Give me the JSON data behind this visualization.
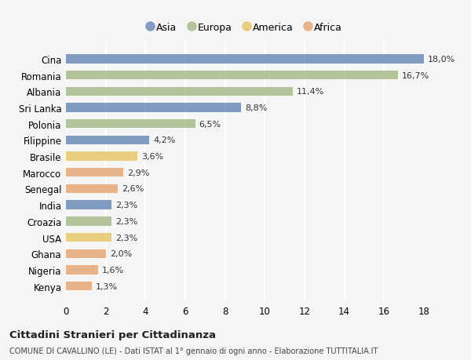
{
  "countries": [
    "Cina",
    "Romania",
    "Albania",
    "Sri Lanka",
    "Polonia",
    "Filippine",
    "Brasile",
    "Marocco",
    "Senegal",
    "India",
    "Croazia",
    "USA",
    "Ghana",
    "Nigeria",
    "Kenya"
  ],
  "values": [
    18.0,
    16.7,
    11.4,
    8.8,
    6.5,
    4.2,
    3.6,
    2.9,
    2.6,
    2.3,
    2.3,
    2.3,
    2.0,
    1.6,
    1.3
  ],
  "continents": [
    "Asia",
    "Europa",
    "Europa",
    "Asia",
    "Europa",
    "Asia",
    "America",
    "Africa",
    "Africa",
    "Asia",
    "Europa",
    "America",
    "Africa",
    "Africa",
    "Africa"
  ],
  "colors": {
    "Asia": "#6b8cba",
    "Europa": "#a8bc8a",
    "America": "#e8c86a",
    "Africa": "#e8a878"
  },
  "legend_order": [
    "Asia",
    "Europa",
    "America",
    "Africa"
  ],
  "title": "Cittadini Stranieri per Cittadinanza",
  "subtitle": "COMUNE DI CAVALLINO (LE) - Dati ISTAT al 1° gennaio di ogni anno - Elaborazione TUTTITALIA.IT",
  "xlim": [
    0,
    18
  ],
  "xticks": [
    0,
    2,
    4,
    6,
    8,
    10,
    12,
    14,
    16,
    18
  ],
  "background_color": "#f5f5f5",
  "grid_color": "#ffffff",
  "bar_height": 0.55
}
